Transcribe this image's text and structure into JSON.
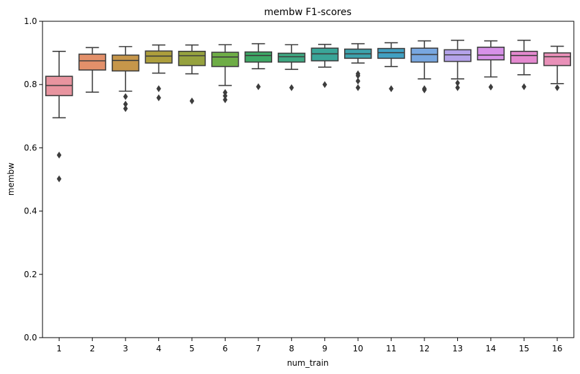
{
  "chart_data": {
    "type": "box",
    "title": "membw F1-scores",
    "xlabel": "num_train",
    "ylabel": "membw",
    "ylim": [
      0.0,
      1.0
    ],
    "yticks": [
      0.0,
      0.2,
      0.4,
      0.6,
      0.8,
      1.0
    ],
    "ytick_labels": [
      "0.0",
      "0.2",
      "0.4",
      "0.6",
      "0.8",
      "1.0"
    ],
    "categories": [
      "1",
      "2",
      "3",
      "4",
      "5",
      "6",
      "7",
      "8",
      "9",
      "10",
      "11",
      "12",
      "13",
      "14",
      "15",
      "16"
    ],
    "grid": false,
    "boxes": [
      {
        "label": "1",
        "color": "#e8949f",
        "whislo": 0.695,
        "q1": 0.765,
        "med": 0.797,
        "q3": 0.826,
        "whishi": 0.905,
        "fliers": [
          0.577,
          0.502
        ]
      },
      {
        "label": "2",
        "color": "#e3906a",
        "whislo": 0.776,
        "q1": 0.846,
        "med": 0.875,
        "q3": 0.896,
        "whishi": 0.917,
        "fliers": []
      },
      {
        "label": "3",
        "color": "#c6964a",
        "whislo": 0.779,
        "q1": 0.843,
        "med": 0.876,
        "q3": 0.893,
        "whishi": 0.92,
        "fliers": [
          0.762,
          0.738,
          0.724
        ]
      },
      {
        "label": "4",
        "color": "#ad9e3c",
        "whislo": 0.836,
        "q1": 0.868,
        "med": 0.89,
        "q3": 0.906,
        "whishi": 0.925,
        "fliers": [
          0.787,
          0.758
        ]
      },
      {
        "label": "5",
        "color": "#96a23e",
        "whislo": 0.834,
        "q1": 0.86,
        "med": 0.891,
        "q3": 0.905,
        "whishi": 0.925,
        "fliers": [
          0.748
        ]
      },
      {
        "label": "6",
        "color": "#6ead46",
        "whislo": 0.797,
        "q1": 0.857,
        "med": 0.887,
        "q3": 0.902,
        "whishi": 0.926,
        "fliers": [
          0.775,
          0.764,
          0.752
        ]
      },
      {
        "label": "7",
        "color": "#3ea865",
        "whislo": 0.85,
        "q1": 0.871,
        "med": 0.892,
        "q3": 0.903,
        "whishi": 0.929,
        "fliers": [
          0.793
        ]
      },
      {
        "label": "8",
        "color": "#3ea882",
        "whislo": 0.848,
        "q1": 0.871,
        "med": 0.888,
        "q3": 0.899,
        "whishi": 0.926,
        "fliers": [
          0.79
        ]
      },
      {
        "label": "9",
        "color": "#3aa598",
        "whislo": 0.855,
        "q1": 0.875,
        "med": 0.897,
        "q3": 0.915,
        "whishi": 0.927,
        "fliers": [
          0.8
        ]
      },
      {
        "label": "10",
        "color": "#3ca2ac",
        "whislo": 0.868,
        "q1": 0.883,
        "med": 0.897,
        "q3": 0.912,
        "whishi": 0.929,
        "fliers": [
          0.834,
          0.828,
          0.811,
          0.79
        ]
      },
      {
        "label": "11",
        "color": "#41a0c2",
        "whislo": 0.857,
        "q1": 0.883,
        "med": 0.901,
        "q3": 0.914,
        "whishi": 0.932,
        "fliers": [
          0.787
        ]
      },
      {
        "label": "12",
        "color": "#78a7e0",
        "whislo": 0.818,
        "q1": 0.871,
        "med": 0.895,
        "q3": 0.915,
        "whishi": 0.938,
        "fliers": [
          0.787,
          0.783
        ]
      },
      {
        "label": "13",
        "color": "#b4a3ea",
        "whislo": 0.818,
        "q1": 0.873,
        "med": 0.894,
        "q3": 0.91,
        "whishi": 0.94,
        "fliers": [
          0.805,
          0.79
        ]
      },
      {
        "label": "14",
        "color": "#d791e8",
        "whislo": 0.824,
        "q1": 0.878,
        "med": 0.893,
        "q3": 0.918,
        "whishi": 0.938,
        "fliers": [
          0.792
        ]
      },
      {
        "label": "15",
        "color": "#e489cf",
        "whislo": 0.831,
        "q1": 0.867,
        "med": 0.892,
        "q3": 0.905,
        "whishi": 0.94,
        "fliers": [
          0.793
        ]
      },
      {
        "label": "16",
        "color": "#e990b8",
        "whislo": 0.803,
        "q1": 0.86,
        "med": 0.888,
        "q3": 0.9,
        "whishi": 0.921,
        "fliers": [
          0.79
        ]
      }
    ]
  }
}
